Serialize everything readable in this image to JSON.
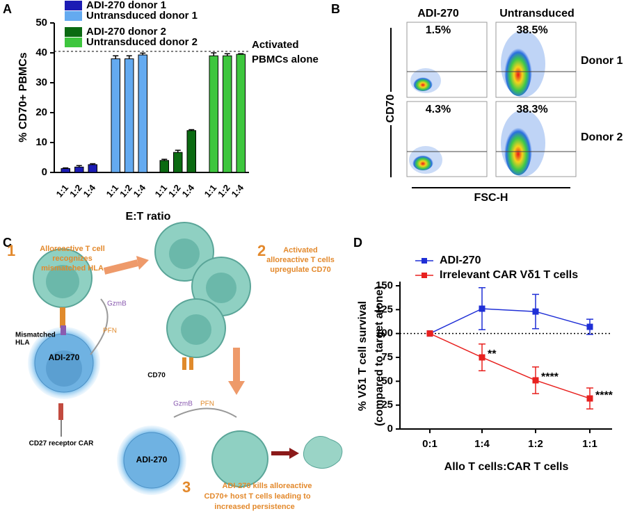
{
  "panels": [
    "A",
    "B",
    "C",
    "D"
  ],
  "chart_data": [
    {
      "type": "bar",
      "ylabel": "% CD70+ PBMCs",
      "xlabel": "E:T ratio",
      "categories": [
        "1:1",
        "1:2",
        "1:4"
      ],
      "series": [
        {
          "name": "ADI-270 donor 1",
          "color": "#1c1cb4",
          "values": [
            1.3,
            1.8,
            2.6
          ],
          "errors": [
            0.2,
            0.5,
            0.3
          ]
        },
        {
          "name": "Untransduced donor 1",
          "color": "#64aaf0",
          "values": [
            38,
            38,
            39.3
          ],
          "errors": [
            1,
            1,
            0.6
          ]
        },
        {
          "name": "ADI-270 donor 2",
          "color": "#0b6a12",
          "values": [
            4,
            6.7,
            14
          ],
          "errors": [
            0.4,
            0.7,
            0.3
          ]
        },
        {
          "name": "Untransduced donor 2",
          "color": "#3ec63e",
          "values": [
            39,
            39,
            39.5
          ],
          "errors": [
            1,
            0.7,
            0.2
          ]
        }
      ],
      "ylim": [
        0,
        50
      ],
      "yticks": [
        0,
        10,
        20,
        30,
        40,
        50
      ],
      "reference_line": {
        "value": 40.5,
        "label": [
          "Activated",
          "PBMCs alone"
        ]
      }
    },
    {
      "type": "line",
      "ylabel": [
        "% Vδ1 T cell survival",
        "(compared to target alone)"
      ],
      "xlabel": "Allo T cells:CAR T cells",
      "categories": [
        "0:1",
        "1:4",
        "1:2",
        "1:1"
      ],
      "series": [
        {
          "name": "ADI-270",
          "color": "#1f2fd6",
          "values": [
            100,
            126,
            123,
            107
          ],
          "errors": [
            0,
            22,
            18,
            8
          ]
        },
        {
          "name": "Irrelevant CAR Vδ1 T cells",
          "color": "#e8211f",
          "values": [
            100,
            75,
            51,
            32
          ],
          "errors": [
            0,
            14,
            14,
            11
          ],
          "annotations": [
            null,
            "**",
            "****",
            "****"
          ]
        }
      ],
      "ylim": [
        0,
        150
      ],
      "yticks": [
        0,
        25,
        50,
        75,
        100,
        125,
        150
      ],
      "reference_line": 100
    }
  ],
  "flow": {
    "columns": [
      "ADI-270",
      "Untransduced"
    ],
    "rows": [
      "Donor 1",
      "Donor 2"
    ],
    "percentages": [
      [
        "1.5%",
        "38.5%"
      ],
      [
        "4.3%",
        "38.3%"
      ]
    ],
    "ylabel": "CD70",
    "xlabel": "FSC-H"
  },
  "diagram": {
    "step1": {
      "number": "1",
      "text": [
        "Alloreactive T cell",
        "recognizes",
        "mismatched HLA"
      ]
    },
    "step2": {
      "number": "2",
      "text": [
        "Activated",
        "alloreactive T cells",
        "upregulate CD70"
      ]
    },
    "step3": {
      "number": "3",
      "text": [
        "ADI-270 kills alloreactive",
        "CD70+ host T cells leading to",
        "increased persistence"
      ]
    },
    "labels": {
      "gzmb_top": "GzmB",
      "pfn_top": "PFN",
      "mismatched": [
        "Mismatched",
        "HLA"
      ],
      "adi_top": "ADI-270",
      "car": "CD27 receptor CAR",
      "cd70": "CD70",
      "gzmb_bottom": "GzmB",
      "pfn_bottom": "PFN",
      "adi_bottom": "ADI-270"
    }
  }
}
